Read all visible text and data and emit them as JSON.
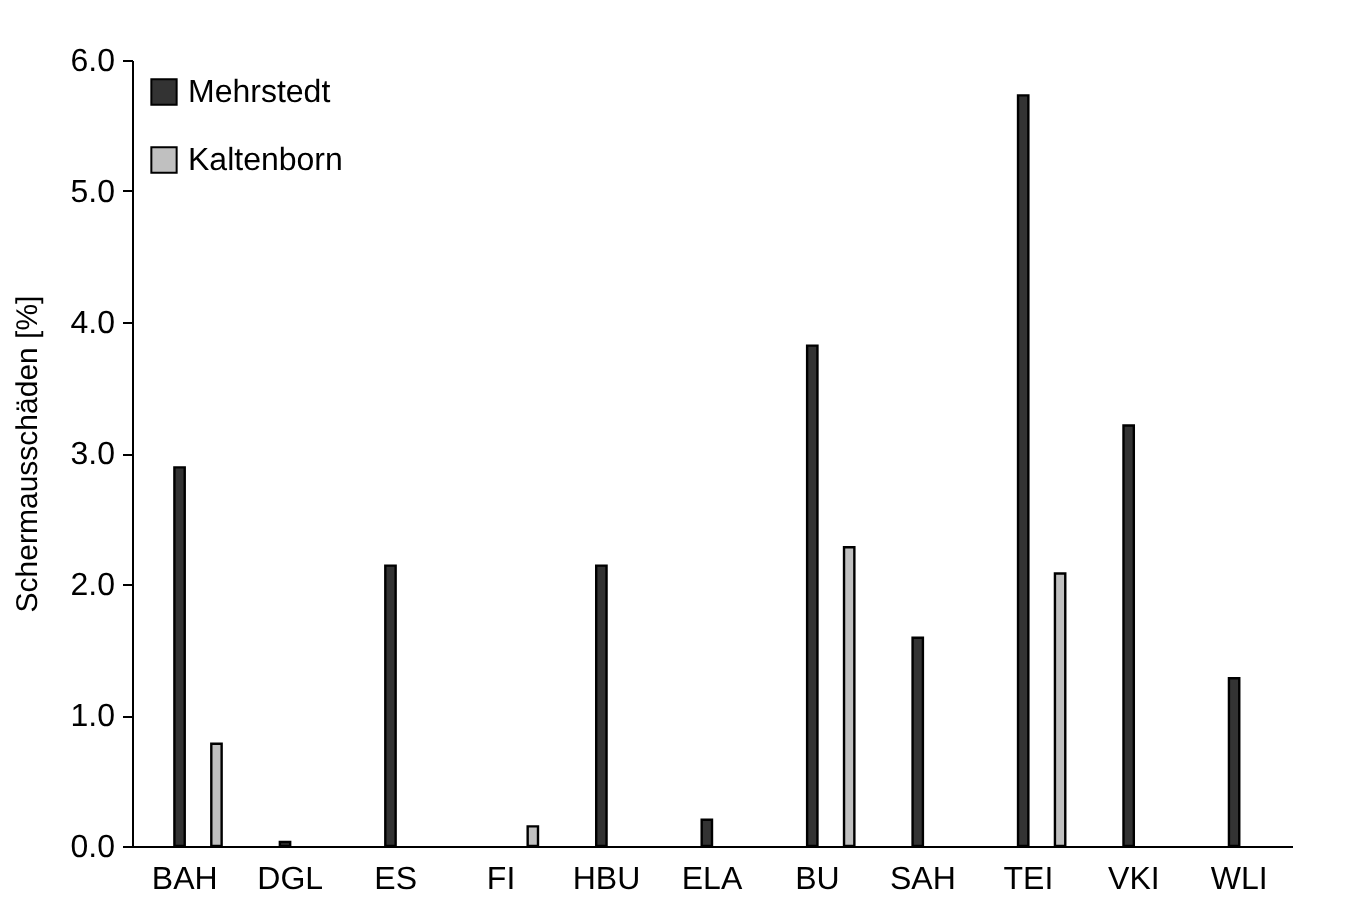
{
  "chart_data": {
    "type": "bar",
    "ylabel": "Schermausschäden [%]",
    "categories": [
      "BAH",
      "DGL",
      "ES",
      "FI",
      "HBU",
      "ELA",
      "BU",
      "SAH",
      "TEI",
      "VKI",
      "WLI"
    ],
    "series": [
      {
        "name": "Mehrstedt",
        "color": "#333333",
        "values": [
          2.89,
          0.03,
          2.14,
          null,
          2.14,
          0.2,
          3.82,
          1.59,
          5.73,
          3.21,
          1.28
        ]
      },
      {
        "name": "Kaltenborn",
        "color": "#c0c0c0",
        "values": [
          0.78,
          null,
          null,
          0.15,
          null,
          null,
          2.28,
          null,
          2.08,
          null,
          null
        ]
      }
    ],
    "ylim": [
      0,
      6
    ],
    "yticks": [
      {
        "value": 0,
        "label": "0.0"
      },
      {
        "value": 1,
        "label": "1.0"
      },
      {
        "value": 2,
        "label": "2.0"
      },
      {
        "value": 3,
        "label": "3.0"
      },
      {
        "value": 4,
        "label": "4.0"
      },
      {
        "value": 5,
        "label": "5.0"
      },
      {
        "value": 6,
        "label": "6.0"
      }
    ],
    "grid": false,
    "legend": "top left"
  }
}
